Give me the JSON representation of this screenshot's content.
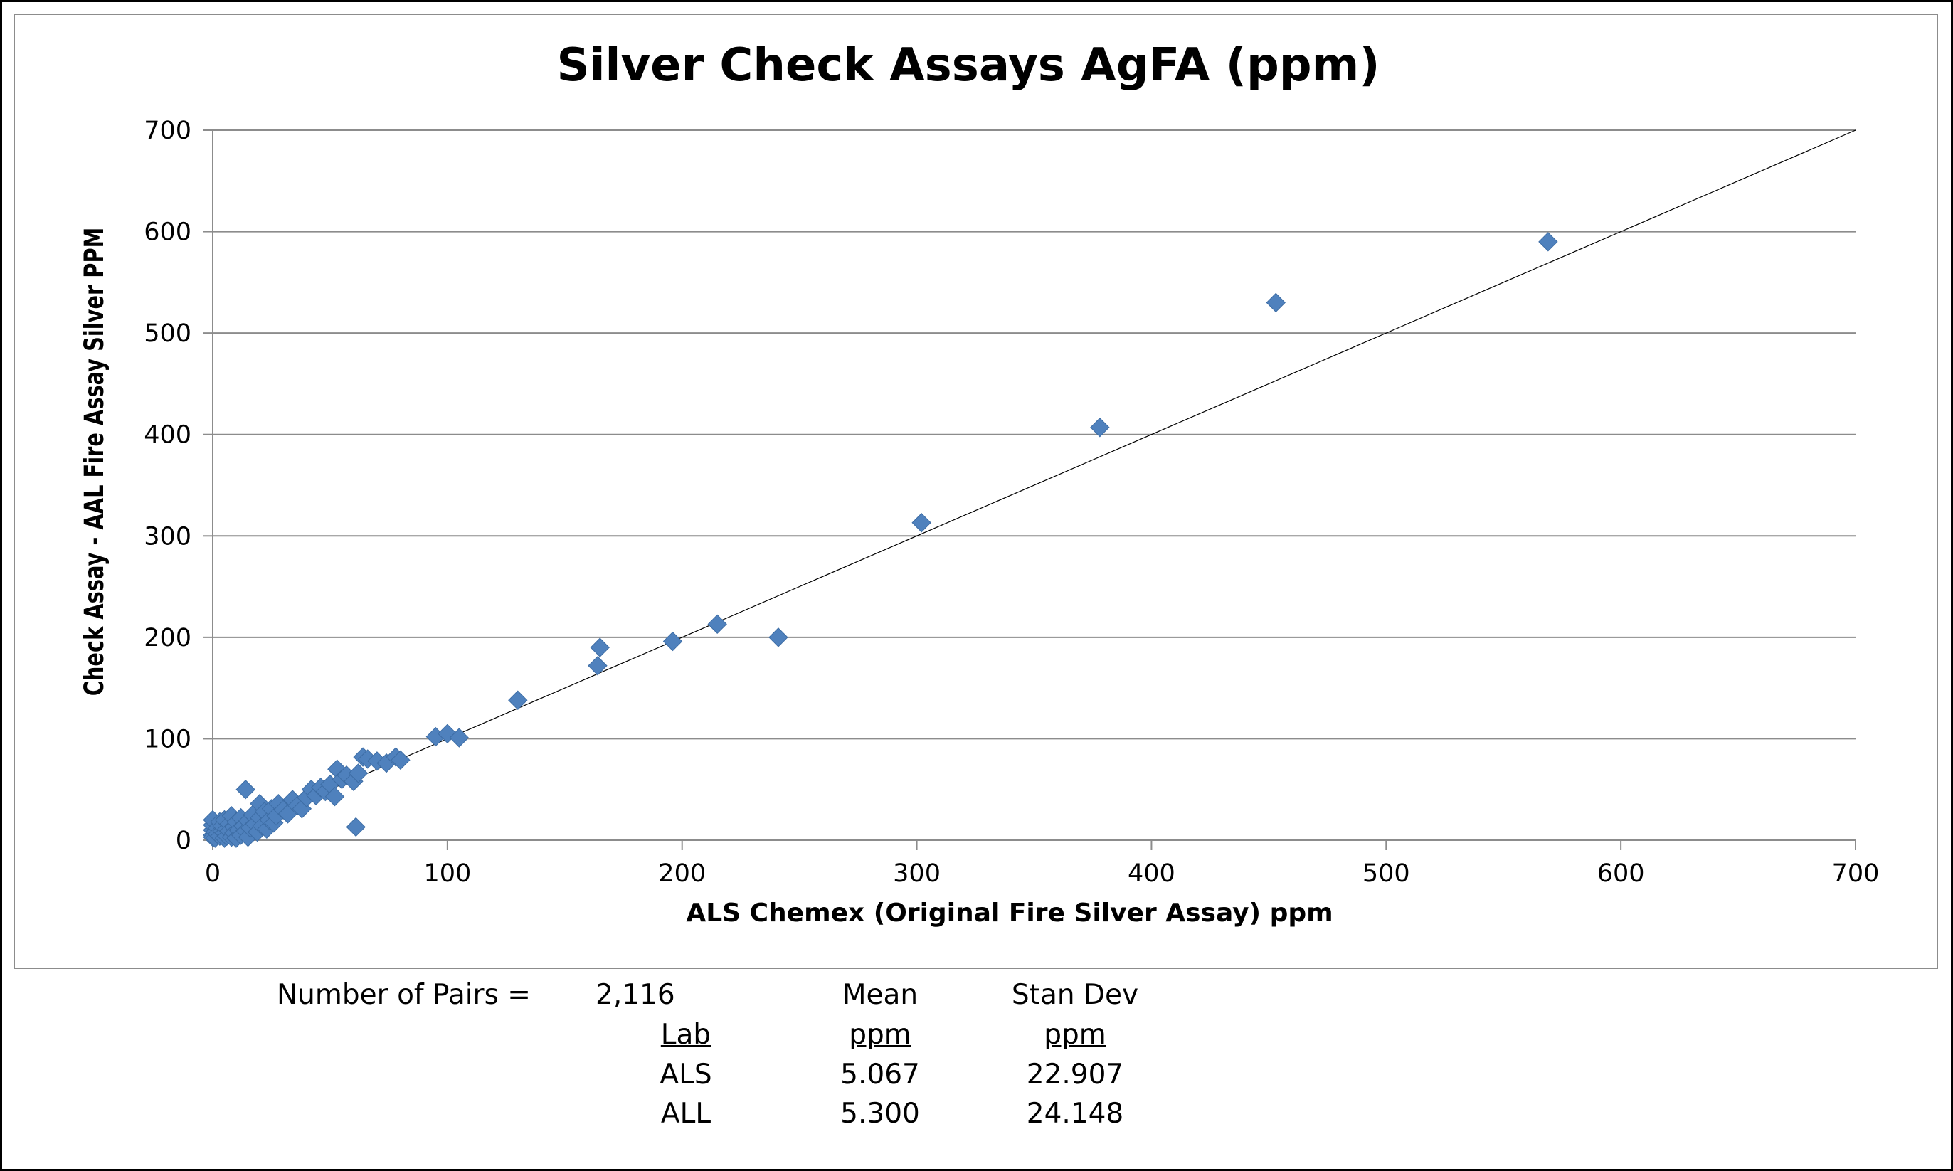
{
  "chart_data": {
    "type": "scatter",
    "title": "Silver Check Assays AgFA (ppm)",
    "xlabel": "ALS Chemex (Original Fire Silver Assay) ppm",
    "ylabel": "Check Assay - AAL Fire Assay Silver PPM",
    "xlim": [
      0,
      700
    ],
    "ylim": [
      0,
      700
    ],
    "x_ticks": [
      "0",
      "100",
      "200",
      "300",
      "400",
      "500",
      "600",
      "700"
    ],
    "y_ticks": [
      "0",
      "100",
      "200",
      "300",
      "400",
      "500",
      "600",
      "700"
    ],
    "grid": "horizontal major gridlines",
    "legend": "none",
    "reference_line": {
      "from": [
        0,
        0
      ],
      "to": [
        700,
        700
      ]
    },
    "marker": "diamond",
    "marker_color": "#4f81bd",
    "series": [
      {
        "points": [
          [
            0,
            5
          ],
          [
            0,
            10
          ],
          [
            0,
            15
          ],
          [
            0,
            20
          ],
          [
            0,
            3
          ],
          [
            1,
            8
          ],
          [
            1,
            2
          ],
          [
            2,
            12
          ],
          [
            2,
            6
          ],
          [
            3,
            18
          ],
          [
            3,
            4
          ],
          [
            4,
            9
          ],
          [
            4,
            14
          ],
          [
            5,
            2
          ],
          [
            5,
            7
          ],
          [
            5,
            20
          ],
          [
            6,
            11
          ],
          [
            6,
            4
          ],
          [
            7,
            16
          ],
          [
            7,
            9
          ],
          [
            8,
            3
          ],
          [
            8,
            24
          ],
          [
            9,
            13
          ],
          [
            9,
            7
          ],
          [
            10,
            18
          ],
          [
            10,
            2
          ],
          [
            11,
            10
          ],
          [
            12,
            22
          ],
          [
            12,
            5
          ],
          [
            13,
            14
          ],
          [
            14,
            50
          ],
          [
            14,
            9
          ],
          [
            15,
            19
          ],
          [
            15,
            3
          ],
          [
            16,
            12
          ],
          [
            17,
            25
          ],
          [
            18,
            16
          ],
          [
            19,
            8
          ],
          [
            20,
            22
          ],
          [
            20,
            36
          ],
          [
            21,
            14
          ],
          [
            22,
            28
          ],
          [
            23,
            11
          ],
          [
            24,
            20
          ],
          [
            25,
            31
          ],
          [
            26,
            17
          ],
          [
            27,
            24
          ],
          [
            28,
            36
          ],
          [
            30,
            30
          ],
          [
            32,
            26
          ],
          [
            34,
            40
          ],
          [
            36,
            34
          ],
          [
            38,
            31
          ],
          [
            40,
            42
          ],
          [
            42,
            50
          ],
          [
            44,
            44
          ],
          [
            46,
            52
          ],
          [
            48,
            48
          ],
          [
            50,
            55
          ],
          [
            52,
            43
          ],
          [
            53,
            70
          ],
          [
            55,
            60
          ],
          [
            57,
            64
          ],
          [
            60,
            58
          ],
          [
            61,
            13
          ],
          [
            62,
            66
          ],
          [
            64,
            82
          ],
          [
            66,
            80
          ],
          [
            70,
            78
          ],
          [
            74,
            76
          ],
          [
            78,
            82
          ],
          [
            80,
            79
          ],
          [
            95,
            102
          ],
          [
            100,
            105
          ],
          [
            105,
            101
          ],
          [
            130,
            138
          ],
          [
            164,
            172
          ],
          [
            165,
            190
          ],
          [
            196,
            196
          ],
          [
            215,
            213
          ],
          [
            241,
            200
          ],
          [
            302,
            313
          ],
          [
            378,
            407
          ],
          [
            453,
            530
          ],
          [
            569,
            590
          ]
        ]
      }
    ]
  },
  "stats": {
    "pairs_label": "Number of Pairs =",
    "pairs_value": "2,116",
    "header_mean": "Mean",
    "header_std": "Stan Dev",
    "header_lab": "Lab",
    "unit_mean": "ppm",
    "unit_std": "ppm",
    "rows": [
      {
        "lab": "ALS",
        "mean": "5.067",
        "std": "22.907"
      },
      {
        "lab": "ALL",
        "mean": "5.300",
        "std": "24.148"
      }
    ]
  }
}
